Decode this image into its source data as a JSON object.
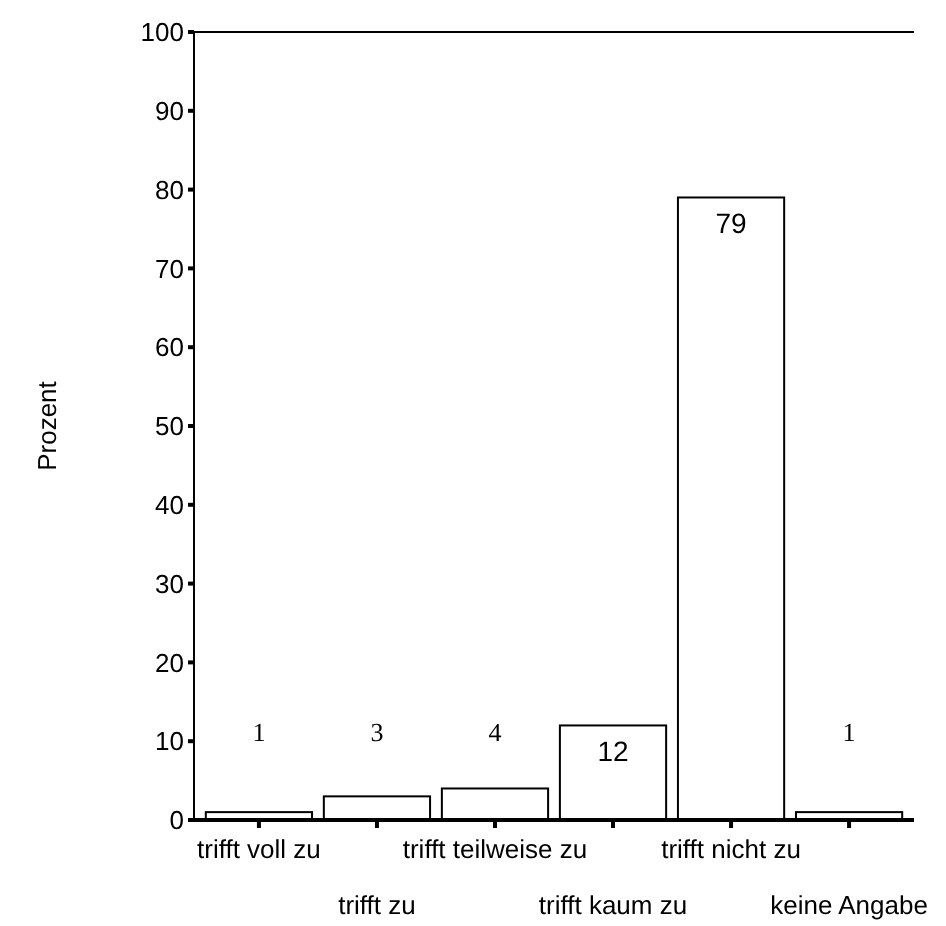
{
  "chart_data": {
    "type": "bar",
    "ylabel": "Prozent",
    "categories": [
      "trifft voll zu",
      "trifft zu",
      "trifft teilweise zu",
      "trifft kaum zu",
      "trifft nicht zu",
      "keine Angabe"
    ],
    "values": [
      1,
      3,
      4,
      12,
      79,
      1
    ],
    "color": "#ffffff",
    "data_labels": true,
    "ylim": [
      0,
      100
    ],
    "yticks": [
      0,
      10,
      20,
      30,
      40,
      50,
      60,
      70,
      80,
      90,
      100
    ],
    "grid": false
  }
}
